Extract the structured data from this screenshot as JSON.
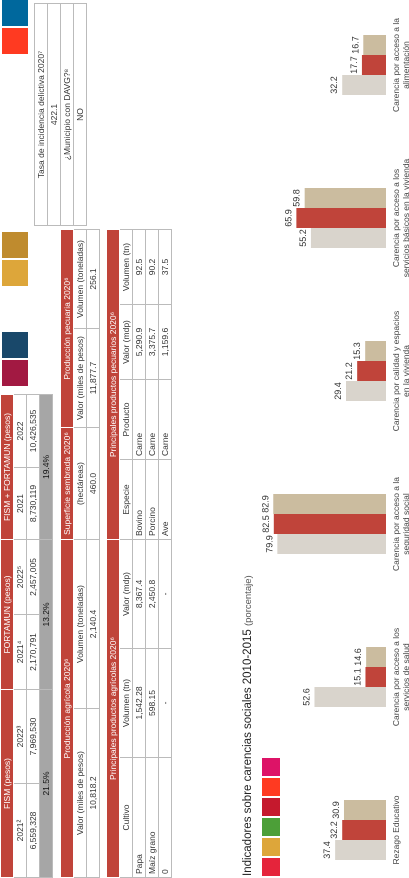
{
  "funds": {
    "headers": [
      "FISM (pesos)",
      "FORTAMUN (pesos)",
      "FISM + FORTAMUN (pesos)"
    ],
    "years": [
      "2021²",
      "2022³",
      "2021⁴",
      "2022⁵",
      "2021",
      "2022"
    ],
    "values": [
      "6,559,328",
      "7,969,530",
      "2,170,791",
      "2,457,005",
      "8,730,119",
      "10,426,535"
    ],
    "growth": [
      "21.5%",
      "13.2%",
      "19.4%"
    ]
  },
  "agricola": {
    "title": "Producción agrícola 2020⁶",
    "headers": [
      "Valor (miles de pesos)",
      "Volumen (toneladas)"
    ],
    "values": [
      "10,818.2",
      "2,140.4"
    ]
  },
  "superficie": {
    "title": "Superficie sembrada 2020⁶",
    "header": "(hectáreas)",
    "value": "460.0"
  },
  "pecuaria": {
    "title": "Producción pecuaria 2020⁶",
    "headers": [
      "Valor (miles de pesos)",
      "Volumen (toneladas)"
    ],
    "values": [
      "11,877.7",
      "256.1"
    ]
  },
  "productos_agricolas": {
    "title": "Principales productos agrícolas 2020⁶",
    "headers": [
      "Cultivo",
      "Volumen (tn)",
      "Valor (mdp)"
    ],
    "rows": [
      [
        "Papa",
        "1,542.28",
        "8,367.4"
      ],
      [
        "Maíz grano",
        "598.15",
        "2,450.8"
      ],
      [
        "0",
        "-",
        "-"
      ]
    ]
  },
  "productos_pecuarios": {
    "title": "Principales productos pecuarios 2020⁶",
    "headers": [
      "Especie",
      "Producto",
      "Valor (mdp)",
      "Volumen (tn)"
    ],
    "rows": [
      [
        "Bovino",
        "Carne",
        "5,290.9",
        "92.5"
      ],
      [
        "Porcino",
        "Carne",
        "3,375.7",
        "90.2"
      ],
      [
        "Ave",
        "Carne",
        "1,159.6",
        "37.5"
      ]
    ]
  },
  "incidencia": {
    "title": "Tasa de incidencia delictiva 2020⁷",
    "value": "422.1",
    "davg_label": "¿Municipio con DAVG?⁸",
    "davg_value": "NO"
  },
  "chart_data": {
    "type": "bar",
    "title": "Indicadores sobre carencias sociales 2010-2015",
    "subtitle": "(porcentaje)",
    "categories": [
      "Rezago Educativo",
      "Carencia por acceso a los servicios de salud",
      "Carencia por acceso a la seguridad social",
      "Carencia por calidad y espacios en la vivienda",
      "Carencia por acceso a los servicios básicos en la vivienda",
      "Carencia por acceso a la alimentación"
    ],
    "series": [
      {
        "color": "#d9d4cc",
        "values": [
          37.4,
          52.6,
          79.9,
          29.4,
          55.2,
          32.2
        ]
      },
      {
        "color": "#c0443a",
        "values": [
          32.2,
          15.1,
          82.5,
          21.2,
          65.9,
          17.7
        ]
      },
      {
        "color": "#cbbc9f",
        "values": [
          30.9,
          14.6,
          82.9,
          15.3,
          59.8,
          16.7
        ]
      }
    ]
  }
}
